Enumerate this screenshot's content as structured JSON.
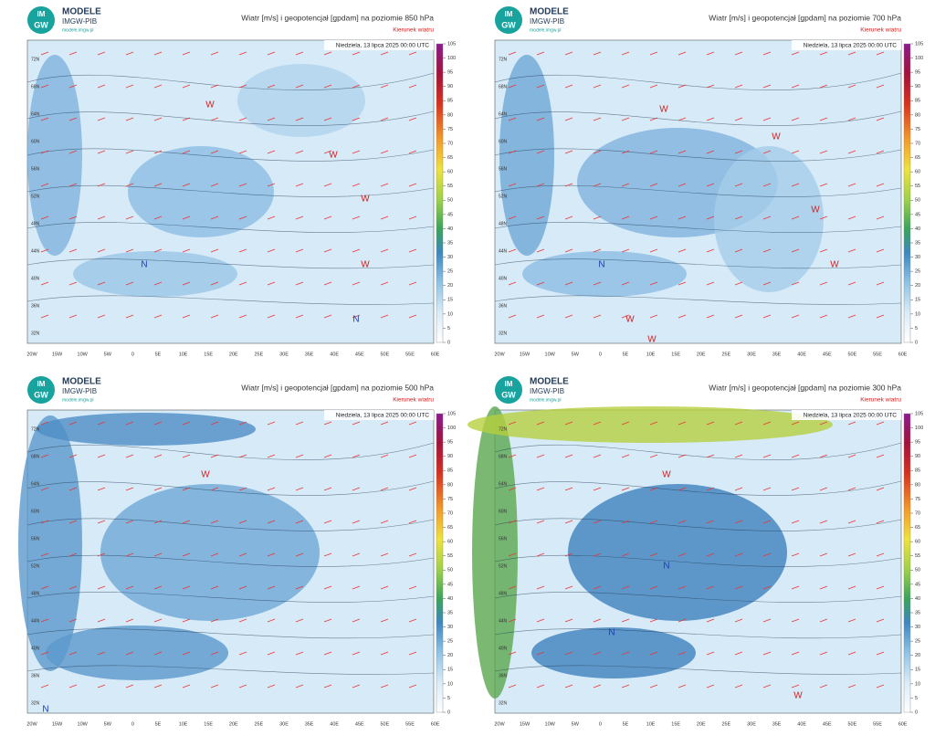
{
  "brand": {
    "logo_top": "IM",
    "logo_bottom": "GW",
    "name": "MODELE",
    "org": "IMGW-PIB",
    "url": "modele.imgw.pl"
  },
  "legend_note": "Kierunek wiatru",
  "valid_time": "Niedziela, 13 lipca 2025 00:00 UTC",
  "colorbar_ticks": [
    0,
    5,
    10,
    15,
    20,
    25,
    30,
    35,
    40,
    45,
    50,
    55,
    60,
    65,
    70,
    75,
    80,
    85,
    90,
    95,
    100,
    105
  ],
  "lat_labels": [
    "72N",
    "68N",
    "64N",
    "60N",
    "56N",
    "52N",
    "48N",
    "44N",
    "40N",
    "36N",
    "32N"
  ],
  "lon_labels": [
    "20W",
    "15W",
    "10W",
    "5W",
    "0",
    "5E",
    "10E",
    "15E",
    "20E",
    "25E",
    "30E",
    "35E",
    "40E",
    "45E",
    "50E",
    "55E",
    "60E"
  ],
  "panels": [
    {
      "title": "Wiatr [m/s] i geopotencjał [gpdam] na poziomie 850 hPa",
      "markers": [
        "W",
        "W",
        "W",
        "W",
        "N",
        "N"
      ]
    },
    {
      "title": "Wiatr [m/s] i geopotencjał [gpdam] na poziomie 700 hPa",
      "markers": [
        "W",
        "W",
        "W",
        "W",
        "N",
        "W",
        "W"
      ]
    },
    {
      "title": "Wiatr [m/s] i geopotencjał [gpdam] na poziomie 500 hPa",
      "markers": [
        "W",
        "N"
      ]
    },
    {
      "title": "Wiatr [m/s] i geopotencjał [gpdam] na poziomie 300 hPa",
      "markers": [
        "W",
        "N",
        "N",
        "W"
      ]
    }
  ]
}
